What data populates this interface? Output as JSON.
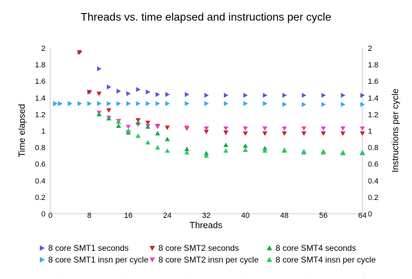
{
  "chart_data": {
    "type": "scatter",
    "title": "Threads vs. time elapsed and instructions per cycle",
    "xlabel": "Threads",
    "ylabel": "Time elapsed",
    "y2label": "Instructions per cycle",
    "xlim": [
      0,
      64
    ],
    "ylim": [
      0,
      2
    ],
    "y2lim": [
      0,
      2
    ],
    "x_ticks": [
      "0",
      "8",
      "16",
      "24",
      "32",
      "40",
      "48",
      "56",
      "64"
    ],
    "y_ticks": [
      "0",
      "0.2",
      "0.4",
      "0.6",
      "0.8",
      "1",
      "1.2",
      "1.4",
      "1.6",
      "1.8",
      "2"
    ],
    "y2_ticks": [
      "0",
      "0.2",
      "0.4",
      "0.6",
      "0.8",
      "1",
      "1.2",
      "1.4",
      "1.6",
      "1.8",
      "2"
    ],
    "grid": false,
    "legend_position": "bottom",
    "series": [
      {
        "name": "8 core SMT1 seconds",
        "marker": "triangle-right",
        "color": "#5555dd",
        "axis": "left",
        "points": [
          [
            1,
            1.33
          ],
          [
            2,
            1.33
          ],
          [
            4,
            1.33
          ],
          [
            6,
            1.95
          ],
          [
            8,
            1.47
          ],
          [
            10,
            1.75
          ],
          [
            12,
            1.53
          ],
          [
            14,
            1.48
          ],
          [
            16,
            1.45
          ],
          [
            18,
            1.5
          ],
          [
            20,
            1.47
          ],
          [
            22,
            1.44
          ],
          [
            24,
            1.44
          ],
          [
            28,
            1.44
          ],
          [
            32,
            1.43
          ],
          [
            36,
            1.43
          ],
          [
            40,
            1.43
          ],
          [
            44,
            1.43
          ],
          [
            48,
            1.43
          ],
          [
            52,
            1.43
          ],
          [
            56,
            1.43
          ],
          [
            60,
            1.43
          ],
          [
            64,
            1.43
          ]
        ]
      },
      {
        "name": "8 core SMT1 insn per cycle",
        "marker": "triangle-right",
        "color": "#33aaee",
        "axis": "right",
        "points": [
          [
            1,
            1.33
          ],
          [
            2,
            1.33
          ],
          [
            4,
            1.33
          ],
          [
            6,
            1.33
          ],
          [
            8,
            1.33
          ],
          [
            10,
            1.33
          ],
          [
            12,
            1.33
          ],
          [
            14,
            1.33
          ],
          [
            16,
            1.33
          ],
          [
            18,
            1.33
          ],
          [
            20,
            1.33
          ],
          [
            22,
            1.33
          ],
          [
            24,
            1.33
          ],
          [
            28,
            1.33
          ],
          [
            32,
            1.33
          ],
          [
            36,
            1.33
          ],
          [
            40,
            1.33
          ],
          [
            44,
            1.33
          ],
          [
            48,
            1.32
          ],
          [
            52,
            1.32
          ],
          [
            56,
            1.32
          ],
          [
            60,
            1.32
          ],
          [
            64,
            1.32
          ]
        ]
      },
      {
        "name": "8 core SMT2 seconds",
        "marker": "triangle-down",
        "color": "#cc2222",
        "axis": "left",
        "points": [
          [
            6,
            1.95
          ],
          [
            8,
            1.47
          ],
          [
            10,
            1.45
          ],
          [
            12,
            1.25
          ],
          [
            14,
            1.12
          ],
          [
            16,
            0.98
          ],
          [
            18,
            1.13
          ],
          [
            20,
            1.1
          ],
          [
            22,
            1.06
          ],
          [
            24,
            1.04
          ],
          [
            28,
            1.03
          ],
          [
            32,
            0.99
          ],
          [
            36,
            0.98
          ],
          [
            40,
            0.97
          ],
          [
            44,
            0.97
          ],
          [
            48,
            0.97
          ],
          [
            52,
            0.97
          ],
          [
            56,
            0.97
          ],
          [
            60,
            0.97
          ],
          [
            64,
            0.97
          ]
        ]
      },
      {
        "name": "8 core SMT2 insn per cycle",
        "marker": "triangle-down",
        "color": "#ee44cc",
        "axis": "right",
        "points": [
          [
            10,
            1.22
          ],
          [
            12,
            1.16
          ],
          [
            14,
            1.12
          ],
          [
            16,
            1.05
          ],
          [
            18,
            1.08
          ],
          [
            20,
            1.06
          ],
          [
            22,
            1.05
          ],
          [
            28,
            1.04
          ],
          [
            32,
            1.03
          ],
          [
            36,
            1.03
          ],
          [
            40,
            1.03
          ],
          [
            44,
            1.03
          ],
          [
            48,
            1.03
          ],
          [
            52,
            1.03
          ],
          [
            56,
            1.03
          ],
          [
            60,
            1.03
          ],
          [
            64,
            1.03
          ]
        ]
      },
      {
        "name": "8 core SMT4 seconds",
        "marker": "triangle-up",
        "color": "#11aa44",
        "axis": "left",
        "points": [
          [
            10,
            1.2
          ],
          [
            12,
            1.15
          ],
          [
            14,
            1.06
          ],
          [
            16,
            0.98
          ],
          [
            18,
            1.1
          ],
          [
            20,
            1.05
          ],
          [
            22,
            0.97
          ],
          [
            24,
            0.9
          ],
          [
            28,
            0.78
          ],
          [
            32,
            0.73
          ],
          [
            36,
            0.83
          ],
          [
            40,
            0.82
          ],
          [
            44,
            0.79
          ],
          [
            48,
            0.77
          ],
          [
            52,
            0.75
          ],
          [
            56,
            0.75
          ],
          [
            60,
            0.74
          ],
          [
            64,
            0.74
          ]
        ]
      },
      {
        "name": "8 core SMT4 insn per cycle",
        "marker": "triangle-up",
        "color": "#22cc66",
        "axis": "right",
        "points": [
          [
            14,
            1.11
          ],
          [
            16,
            1.0
          ],
          [
            18,
            0.94
          ],
          [
            20,
            0.86
          ],
          [
            22,
            0.8
          ],
          [
            24,
            0.76
          ],
          [
            28,
            0.74
          ],
          [
            32,
            0.7
          ],
          [
            36,
            0.76
          ],
          [
            40,
            0.77
          ],
          [
            44,
            0.76
          ],
          [
            48,
            0.76
          ],
          [
            52,
            0.74
          ],
          [
            56,
            0.74
          ],
          [
            60,
            0.73
          ],
          [
            64,
            0.73
          ]
        ]
      }
    ]
  }
}
